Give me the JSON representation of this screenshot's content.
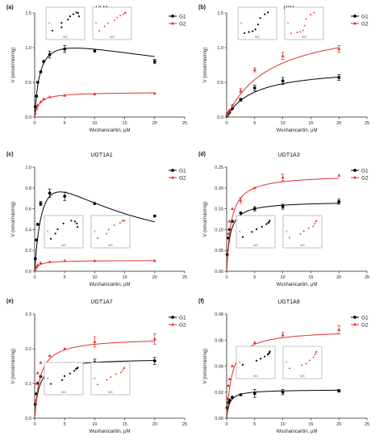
{
  "chart_data": [
    {
      "panel": "(a)",
      "title": "HLM",
      "type": "scatter",
      "xlabel": "Wushanicaritin, μM",
      "ylabel": "V (nmol/min/mg)",
      "xlim": [
        0,
        25
      ],
      "ylim": [
        0,
        1.5
      ],
      "xticks": [
        0,
        5,
        10,
        15,
        20,
        25
      ],
      "yticks": [
        0.0,
        0.5,
        1.0,
        1.5
      ],
      "yticklabels": [
        "0.0",
        "0.5",
        "1.0",
        "1.5"
      ],
      "legend": "top-right",
      "inset": "top",
      "series": [
        {
          "name": "G1",
          "color": "#000000",
          "marker": "circle",
          "x": [
            0.1,
            0.3,
            0.5,
            1,
            1.5,
            2.5,
            5,
            10,
            20
          ],
          "y": [
            0.15,
            0.3,
            0.5,
            0.65,
            0.8,
            0.9,
            0.98,
            0.95,
            0.8
          ],
          "err": [
            0,
            0,
            0,
            0,
            0,
            0.05,
            0.05,
            0,
            0.03
          ],
          "fit": {
            "model": "substrate_inhibition",
            "vmax": 1.26,
            "km": 0.9,
            "ki": 50
          }
        },
        {
          "name": "G2",
          "color": "#e0312b",
          "marker": "triangle",
          "x": [
            0.1,
            0.3,
            0.5,
            1,
            1.5,
            2.5,
            5,
            10,
            20
          ],
          "y": [
            0.05,
            0.12,
            0.17,
            0.22,
            0.26,
            0.29,
            0.31,
            0.33,
            0.34
          ],
          "err": [
            0,
            0,
            0,
            0,
            0,
            0,
            0,
            0,
            0
          ],
          "fit": {
            "model": "michaelis_menten",
            "vmax": 0.36,
            "km": 0.7
          }
        }
      ],
      "inset_text": {
        "x": "V/C",
        "y": "V"
      }
    },
    {
      "panel": "(b)",
      "title": "HIM",
      "type": "scatter",
      "xlabel": "Wushanicaritin, μM",
      "ylabel": "V (nmol/min/mg)",
      "xlim": [
        0,
        25
      ],
      "ylim": [
        0,
        1.5
      ],
      "xticks": [
        0,
        5,
        10,
        15,
        20,
        25
      ],
      "yticks": [
        0.0,
        0.5,
        1.0,
        1.5
      ],
      "yticklabels": [
        "0.0",
        "0.5",
        "1.0",
        "1.5"
      ],
      "legend": "top-right",
      "inset": "top",
      "series": [
        {
          "name": "G1",
          "color": "#000000",
          "marker": "circle",
          "x": [
            0.1,
            0.3,
            0.5,
            1,
            2.5,
            5,
            10,
            20
          ],
          "y": [
            0.02,
            0.05,
            0.07,
            0.12,
            0.25,
            0.42,
            0.52,
            0.57
          ],
          "err": [
            0,
            0,
            0,
            0,
            0.02,
            0.04,
            0.05,
            0.04
          ],
          "fit": {
            "model": "michaelis_menten",
            "vmax": 0.72,
            "km": 5
          }
        },
        {
          "name": "G2",
          "color": "#e0312b",
          "marker": "triangle",
          "x": [
            0.1,
            0.3,
            0.5,
            1,
            2.5,
            5,
            10,
            20
          ],
          "y": [
            0.03,
            0.07,
            0.1,
            0.17,
            0.38,
            0.68,
            0.88,
            0.98
          ],
          "err": [
            0,
            0,
            0,
            0,
            0.03,
            0.03,
            0.05,
            0.05
          ],
          "fit": {
            "model": "michaelis_menten",
            "vmax": 1.4,
            "km": 8
          }
        }
      ],
      "inset_text": {
        "x": "V/C",
        "y": "V"
      }
    },
    {
      "panel": "(c)",
      "title": "UGT1A1",
      "type": "scatter",
      "xlabel": "Wushanicaritin, μM",
      "ylabel": "V (nmol/min/mg)",
      "xlim": [
        0,
        25
      ],
      "ylim": [
        0,
        1.0
      ],
      "xticks": [
        0,
        5,
        10,
        15,
        20,
        25
      ],
      "yticks": [
        0.0,
        0.2,
        0.4,
        0.6,
        0.8,
        1.0
      ],
      "yticklabels": [
        "0.0",
        "0.2",
        "0.4",
        "0.6",
        "0.8",
        "1.0"
      ],
      "legend": "top-right",
      "inset": "bottom",
      "series": [
        {
          "name": "G1",
          "color": "#000000",
          "marker": "circle",
          "x": [
            0.1,
            0.3,
            0.5,
            1,
            2.5,
            5,
            10,
            20
          ],
          "y": [
            0.12,
            0.3,
            0.45,
            0.65,
            0.75,
            0.72,
            0.65,
            0.53
          ],
          "err": [
            0,
            0,
            0,
            0.02,
            0.04,
            0.04,
            0,
            0
          ],
          "fit": {
            "model": "substrate_inhibition",
            "vmax": 1.3,
            "km": 1.5,
            "ki": 12
          }
        },
        {
          "name": "G2",
          "color": "#e0312b",
          "marker": "triangle",
          "x": [
            0.1,
            0.3,
            0.5,
            1,
            2.5,
            5,
            10,
            20
          ],
          "y": [
            0.02,
            0.04,
            0.06,
            0.08,
            0.09,
            0.1,
            0.1,
            0.1
          ],
          "err": [
            0,
            0,
            0,
            0,
            0,
            0,
            0,
            0
          ],
          "fit": {
            "model": "michaelis_menten",
            "vmax": 0.105,
            "km": 0.6
          }
        }
      ],
      "inset_text": {
        "x": "V/C",
        "y": "V"
      }
    },
    {
      "panel": "(d)",
      "title": "UGT1A3",
      "type": "scatter",
      "xlabel": "Wushanicaritin, μM",
      "ylabel": "V (nmol/min/mg)",
      "xlim": [
        0,
        25
      ],
      "ylim": [
        0,
        0.25
      ],
      "xticks": [
        0,
        5,
        10,
        15,
        20,
        25
      ],
      "yticks": [
        0.0,
        0.05,
        0.1,
        0.15,
        0.2,
        0.25
      ],
      "yticklabels": [
        "0.00",
        "0.05",
        "0.10",
        "0.15",
        "0.20",
        "0.25"
      ],
      "legend": "top-right",
      "inset": "bottom",
      "series": [
        {
          "name": "G1",
          "color": "#000000",
          "marker": "circle",
          "x": [
            0.1,
            0.3,
            0.5,
            1,
            2.5,
            5,
            10,
            20
          ],
          "y": [
            0.04,
            0.08,
            0.1,
            0.12,
            0.14,
            0.15,
            0.155,
            0.167
          ],
          "err": [
            0,
            0,
            0,
            0,
            0,
            0.005,
            0.006,
            0.006
          ],
          "fit": {
            "model": "michaelis_menten",
            "vmax": 0.168,
            "km": 0.6
          }
        },
        {
          "name": "G2",
          "color": "#e0312b",
          "marker": "triangle",
          "x": [
            0.1,
            0.3,
            0.5,
            1,
            2.5,
            5,
            10,
            20
          ],
          "y": [
            0.05,
            0.09,
            0.12,
            0.15,
            0.17,
            0.2,
            0.225,
            0.23
          ],
          "err": [
            0,
            0,
            0,
            0,
            0.007,
            0,
            0.008,
            0
          ],
          "fit": {
            "model": "michaelis_menten",
            "vmax": 0.232,
            "km": 0.8
          }
        }
      ],
      "inset_text": {
        "x": "V/C",
        "y": "V"
      }
    },
    {
      "panel": "(e)",
      "title": "UGT1A7",
      "type": "scatter",
      "xlabel": "Wushanicaritin, μM",
      "ylabel": "V (nmol/min/mg)",
      "xlim": [
        0,
        25
      ],
      "ylim": [
        0,
        0.3
      ],
      "xticks": [
        0,
        5,
        10,
        15,
        20,
        25
      ],
      "yticks": [
        0.0,
        0.1,
        0.2,
        0.3
      ],
      "yticklabels": [
        "0.0",
        "0.1",
        "0.2",
        "0.3"
      ],
      "legend": "top-right",
      "inset": "bottom",
      "series": [
        {
          "name": "G1",
          "color": "#000000",
          "marker": "circle",
          "x": [
            0.1,
            0.3,
            0.5,
            1,
            2.5,
            5,
            10,
            20
          ],
          "y": [
            0.04,
            0.07,
            0.1,
            0.12,
            0.14,
            0.155,
            0.16,
            0.165
          ],
          "err": [
            0,
            0,
            0,
            0,
            0,
            0.005,
            0.01,
            0.01
          ],
          "fit": {
            "model": "michaelis_menten",
            "vmax": 0.172,
            "km": 0.7
          }
        },
        {
          "name": "G2",
          "color": "#e0312b",
          "marker": "triangle",
          "x": [
            0.1,
            0.3,
            0.5,
            1,
            2.5,
            5,
            10,
            20
          ],
          "y": [
            0.05,
            0.1,
            0.13,
            0.16,
            0.18,
            0.2,
            0.22,
            0.228
          ],
          "err": [
            0,
            0,
            0,
            0,
            0,
            0,
            0.015,
            0.015
          ],
          "fit": {
            "model": "michaelis_menten",
            "vmax": 0.232,
            "km": 0.9
          }
        }
      ],
      "inset_text": {
        "x": "V/C",
        "y": "V"
      }
    },
    {
      "panel": "(f)",
      "title": "UGT1A8",
      "type": "scatter",
      "xlabel": "Wushanicaritin, μM",
      "ylabel": "V (nmol/min/mg)",
      "xlim": [
        0,
        25
      ],
      "ylim": [
        0,
        0.08
      ],
      "xticks": [
        0,
        5,
        10,
        15,
        20,
        25
      ],
      "yticks": [
        0.0,
        0.02,
        0.04,
        0.06,
        0.08
      ],
      "yticklabels": [
        "0.00",
        "0.02",
        "0.04",
        "0.06",
        "0.08"
      ],
      "legend": "top-right",
      "inset": "middle",
      "series": [
        {
          "name": "G1",
          "color": "#000000",
          "marker": "circle",
          "x": [
            0.1,
            0.3,
            0.5,
            1,
            2.5,
            5,
            10,
            20
          ],
          "y": [
            0.008,
            0.012,
            0.014,
            0.016,
            0.018,
            0.019,
            0.02,
            0.021
          ],
          "err": [
            0,
            0,
            0,
            0,
            0,
            0.003,
            0.002,
            0.001
          ],
          "fit": {
            "model": "michaelis_menten",
            "vmax": 0.022,
            "km": 0.5
          }
        },
        {
          "name": "G2",
          "color": "#e0312b",
          "marker": "triangle",
          "x": [
            0.1,
            0.3,
            0.5,
            1,
            2.5,
            5,
            10,
            20
          ],
          "y": [
            0.015,
            0.025,
            0.03,
            0.04,
            0.05,
            0.058,
            0.064,
            0.068
          ],
          "err": [
            0,
            0,
            0,
            0,
            0,
            0,
            0.002,
            0.003
          ],
          "fit": {
            "model": "michaelis_menten",
            "vmax": 0.068,
            "km": 1
          }
        }
      ],
      "inset_text": {
        "x": "V/C",
        "y": "V"
      }
    }
  ]
}
